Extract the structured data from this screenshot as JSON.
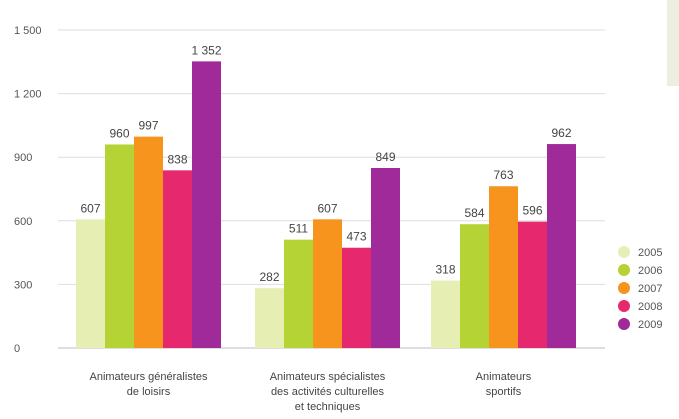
{
  "chart_data": {
    "type": "bar",
    "title": "",
    "xlabel": "",
    "ylabel": "",
    "categories": [
      [
        "Animateurs généralistes",
        "de loisirs"
      ],
      [
        "Animateurs spécialistes",
        "des activités culturelles",
        "et techniques"
      ],
      [
        "Animateurs",
        "sportifs"
      ]
    ],
    "series": [
      {
        "name": "2005",
        "color": "#e6eeb4",
        "values": [
          607,
          282,
          318
        ]
      },
      {
        "name": "2006",
        "color": "#b5d334",
        "values": [
          960,
          511,
          584
        ]
      },
      {
        "name": "2007",
        "color": "#f7941d",
        "values": [
          997,
          607,
          763
        ]
      },
      {
        "name": "2008",
        "color": "#e6286e",
        "values": [
          838,
          473,
          596
        ]
      },
      {
        "name": "2009",
        "color": "#a12a9a",
        "values": [
          1352,
          849,
          962
        ]
      }
    ],
    "value_labels": [
      [
        "607",
        "282",
        "318"
      ],
      [
        "960",
        "511",
        "584"
      ],
      [
        "997",
        "607",
        "763"
      ],
      [
        "838",
        "473",
        "596"
      ],
      [
        "1 352",
        "849",
        "962"
      ]
    ],
    "ylim": [
      0,
      1500
    ],
    "yticks": [
      0,
      300,
      600,
      900,
      1200,
      1500
    ],
    "ytick_labels": [
      "0",
      "300",
      "600",
      "900",
      "1 200",
      "1 500"
    ],
    "grid": true,
    "legend_position": "right"
  }
}
